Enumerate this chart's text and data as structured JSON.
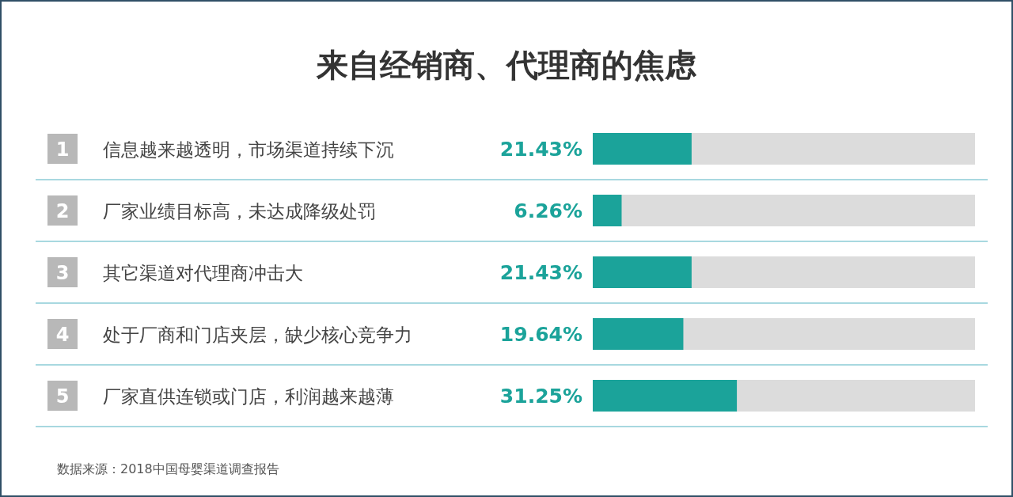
{
  "chart_data": {
    "type": "bar",
    "orientation": "horizontal",
    "title": "来自经销商、代理商的焦虑",
    "categories": [
      "信息越来越透明，市场渠道持续下沉",
      "厂家业绩目标高，未达成降级处罚",
      "其它渠道对代理商冲击大",
      "处于厂商和门店夹层，缺少核心竞争力",
      "厂家直供连锁或门店，利润越来越薄"
    ],
    "series": [
      {
        "color": "#1ba39a",
        "values": [
          21.43,
          6.26,
          21.43,
          19.64,
          31.25
        ],
        "value_labels": [
          "21.43%",
          "6.26%",
          "21.43%",
          "19.64%",
          "31.25%"
        ]
      }
    ],
    "annotations": [
      "1",
      "2",
      "3",
      "4",
      "5",
      "数据来源：2018中国母婴渠道调查报告"
    ]
  }
}
